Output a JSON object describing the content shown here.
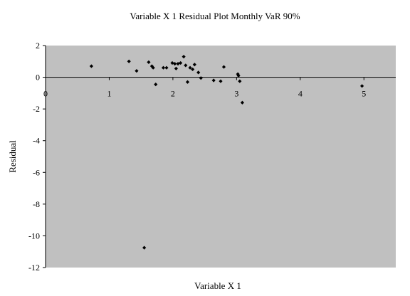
{
  "chart_data": {
    "type": "scatter",
    "title": "Variable X 1 Residual Plot Monthly VaR 90%",
    "xlabel": "Variable X 1",
    "ylabel": "Residual",
    "xlim": [
      0,
      5.5
    ],
    "ylim": [
      -12,
      2
    ],
    "x_ticks": [
      0,
      1,
      2,
      3,
      4,
      5
    ],
    "y_ticks": [
      2,
      0,
      -2,
      -4,
      -6,
      -8,
      -10,
      -12
    ],
    "x_tick_labels": [
      "0",
      "1",
      "2",
      "3",
      "4",
      "5"
    ],
    "y_tick_labels": [
      "2",
      "0",
      "-2",
      "-4",
      "-6",
      "-8",
      "-10",
      "-12"
    ],
    "grid": false,
    "legend": "none",
    "colors": {
      "plot_background": "#c0c0c0",
      "marker": "#000000",
      "axis": "#000000",
      "page": "#ffffff"
    },
    "points": [
      {
        "x": 0.72,
        "y": 0.7
      },
      {
        "x": 1.31,
        "y": 1.0
      },
      {
        "x": 1.43,
        "y": 0.4
      },
      {
        "x": 1.55,
        "y": -10.75
      },
      {
        "x": 1.62,
        "y": 0.95
      },
      {
        "x": 1.67,
        "y": 0.7
      },
      {
        "x": 1.69,
        "y": 0.6
      },
      {
        "x": 1.73,
        "y": -0.45
      },
      {
        "x": 1.85,
        "y": 0.6
      },
      {
        "x": 1.9,
        "y": 0.6
      },
      {
        "x": 1.99,
        "y": 0.9
      },
      {
        "x": 2.03,
        "y": 0.85
      },
      {
        "x": 2.05,
        "y": 0.55
      },
      {
        "x": 2.08,
        "y": 0.85
      },
      {
        "x": 2.12,
        "y": 0.9
      },
      {
        "x": 2.17,
        "y": 1.3
      },
      {
        "x": 2.2,
        "y": 0.75
      },
      {
        "x": 2.23,
        "y": -0.3
      },
      {
        "x": 2.27,
        "y": 0.6
      },
      {
        "x": 2.31,
        "y": 0.5
      },
      {
        "x": 2.34,
        "y": 0.8
      },
      {
        "x": 2.4,
        "y": 0.3
      },
      {
        "x": 2.44,
        "y": -0.05
      },
      {
        "x": 2.64,
        "y": -0.2
      },
      {
        "x": 2.75,
        "y": -0.25
      },
      {
        "x": 2.8,
        "y": 0.65
      },
      {
        "x": 3.02,
        "y": 0.2
      },
      {
        "x": 3.03,
        "y": 0.1
      },
      {
        "x": 3.05,
        "y": -0.25
      },
      {
        "x": 3.09,
        "y": -1.6
      },
      {
        "x": 4.97,
        "y": -0.55
      }
    ]
  }
}
